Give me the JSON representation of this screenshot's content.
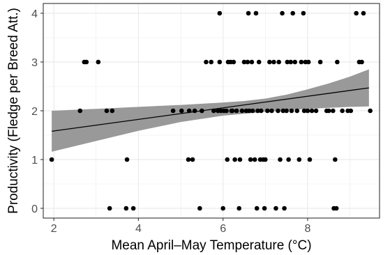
{
  "chart_data": {
    "type": "scatter",
    "title": "",
    "xlabel": "Mean April–May Temperature (°C)",
    "ylabel": "Productivity (Fledge per Breed Att.)",
    "xlim": [
      1.75,
      9.7
    ],
    "ylim": [
      -0.2,
      4.2
    ],
    "xticks": [
      2,
      4,
      6,
      8
    ],
    "yticks": [
      0,
      1,
      2,
      3,
      4
    ],
    "xtick_labels": [
      "2",
      "4",
      "6",
      "8"
    ],
    "ytick_labels": [
      "0",
      "1",
      "2",
      "3",
      "4"
    ],
    "grid": true,
    "legend": "none",
    "colors": {
      "points": "#000000",
      "fit_line": "#000000",
      "ribbon": "#999999",
      "grid": "#ebebeb",
      "panel_border": "#333333"
    },
    "series": [
      {
        "type": "scatter",
        "points": [
          [
            1.95,
            1
          ],
          [
            2.62,
            2
          ],
          [
            2.72,
            3
          ],
          [
            2.77,
            3
          ],
          [
            3.05,
            3
          ],
          [
            3.25,
            2
          ],
          [
            3.38,
            2
          ],
          [
            3.32,
            0
          ],
          [
            3.73,
            1
          ],
          [
            3.71,
            0
          ],
          [
            3.88,
            0
          ],
          [
            4.82,
            2
          ],
          [
            5.02,
            2
          ],
          [
            5.2,
            2
          ],
          [
            5.33,
            2
          ],
          [
            5.18,
            1
          ],
          [
            5.28,
            1
          ],
          [
            5.5,
            2
          ],
          [
            5.45,
            0
          ],
          [
            5.6,
            3
          ],
          [
            5.72,
            3
          ],
          [
            5.78,
            2
          ],
          [
            5.88,
            2
          ],
          [
            5.92,
            4
          ],
          [
            5.95,
            2
          ],
          [
            6.02,
            2
          ],
          [
            6.0,
            0
          ],
          [
            5.92,
            3
          ],
          [
            6.08,
            2
          ],
          [
            6.1,
            1
          ],
          [
            6.12,
            3
          ],
          [
            6.18,
            3
          ],
          [
            6.2,
            2
          ],
          [
            6.22,
            2
          ],
          [
            6.25,
            3
          ],
          [
            6.28,
            1
          ],
          [
            6.32,
            2
          ],
          [
            6.38,
            0
          ],
          [
            6.4,
            1
          ],
          [
            6.45,
            2
          ],
          [
            6.5,
            3
          ],
          [
            6.55,
            2
          ],
          [
            6.58,
            3
          ],
          [
            6.6,
            4
          ],
          [
            6.62,
            2
          ],
          [
            6.65,
            1
          ],
          [
            6.68,
            3
          ],
          [
            6.7,
            2
          ],
          [
            6.75,
            1
          ],
          [
            6.78,
            4
          ],
          [
            6.8,
            0
          ],
          [
            6.82,
            2
          ],
          [
            6.85,
            3
          ],
          [
            6.88,
            1
          ],
          [
            6.9,
            2
          ],
          [
            6.95,
            1
          ],
          [
            6.98,
            0
          ],
          [
            7.0,
            1
          ],
          [
            7.05,
            2
          ],
          [
            7.1,
            3
          ],
          [
            7.15,
            2
          ],
          [
            7.2,
            3
          ],
          [
            7.25,
            0
          ],
          [
            7.3,
            2
          ],
          [
            7.32,
            3
          ],
          [
            7.35,
            1
          ],
          [
            7.4,
            4
          ],
          [
            7.42,
            2
          ],
          [
            7.45,
            0
          ],
          [
            7.5,
            2
          ],
          [
            7.52,
            3
          ],
          [
            7.55,
            1
          ],
          [
            7.6,
            3
          ],
          [
            7.62,
            2
          ],
          [
            7.65,
            4
          ],
          [
            7.7,
            3
          ],
          [
            7.75,
            2
          ],
          [
            7.8,
            1
          ],
          [
            7.85,
            3
          ],
          [
            7.9,
            4
          ],
          [
            7.92,
            2
          ],
          [
            7.95,
            3
          ],
          [
            8.0,
            2
          ],
          [
            8.02,
            3
          ],
          [
            8.05,
            1
          ],
          [
            8.1,
            2
          ],
          [
            8.2,
            2
          ],
          [
            8.3,
            3
          ],
          [
            8.45,
            2
          ],
          [
            8.5,
            2
          ],
          [
            8.6,
            2
          ],
          [
            8.62,
            0
          ],
          [
            8.68,
            0
          ],
          [
            8.65,
            1
          ],
          [
            8.7,
            3
          ],
          [
            8.82,
            2
          ],
          [
            8.95,
            2
          ],
          [
            9.02,
            2
          ],
          [
            9.15,
            4
          ],
          [
            9.22,
            3
          ],
          [
            9.28,
            3
          ],
          [
            9.32,
            4
          ],
          [
            9.48,
            2
          ]
        ]
      },
      {
        "type": "line",
        "name": "",
        "x": [
          1.95,
          9.45
        ],
        "y": [
          1.58,
          2.47
        ]
      },
      {
        "type": "ribbon",
        "name": "",
        "x": [
          1.95,
          3.0,
          4.0,
          5.0,
          6.0,
          6.5,
          7.0,
          7.5,
          8.0,
          8.5,
          9.0,
          9.45
        ],
        "lower": [
          1.16,
          1.38,
          1.59,
          1.77,
          1.9,
          1.94,
          1.98,
          2.01,
          2.04,
          2.06,
          2.08,
          2.09
        ],
        "upper": [
          2.0,
          2.04,
          2.08,
          2.12,
          2.17,
          2.2,
          2.25,
          2.33,
          2.44,
          2.56,
          2.7,
          2.85
        ]
      }
    ]
  }
}
